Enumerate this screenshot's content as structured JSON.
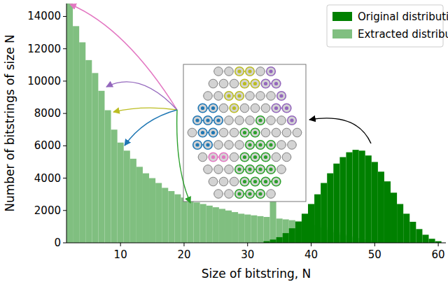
{
  "chart_data": {
    "type": "histogram",
    "x_label": "Size of bitstring, N",
    "y_label": "Number of bitstrings of size N",
    "bins": [
      1.5,
      2.5,
      3.5,
      4.5,
      5.5,
      6.5,
      7.5,
      8.5,
      9.5,
      10.5,
      11.5,
      12.5,
      13.5,
      14.5,
      15.5,
      16.5,
      17.5,
      18.5,
      19.5,
      20.5,
      21.5,
      22.5,
      23.5,
      24.5,
      25.5,
      26.5,
      27.5,
      28.5,
      29.5,
      30.5,
      31.5,
      32.5,
      33.5,
      34.5,
      35.5,
      36.5,
      37.5,
      38.5,
      39.5,
      40.5,
      41.5,
      42.5,
      43.5,
      44.5,
      45.5,
      46.5,
      47.5,
      48.5,
      49.5,
      50.5,
      51.5,
      52.5,
      53.5,
      54.5,
      55.5,
      56.5,
      57.5,
      58.5,
      59.5,
      60.5
    ],
    "series": [
      {
        "name": "Original distribution",
        "color": "#008000",
        "values": [
          0,
          0,
          0,
          0,
          0,
          0,
          0,
          0,
          0,
          0,
          0,
          0,
          0,
          0,
          0,
          0,
          0,
          0,
          0,
          0,
          0,
          0,
          0,
          0,
          0,
          0,
          0,
          0,
          0,
          0,
          0,
          100,
          200,
          350,
          600,
          900,
          1300,
          1800,
          2400,
          3000,
          3700,
          4300,
          4900,
          5300,
          5600,
          5750,
          5700,
          5400,
          5000,
          4400,
          3800,
          3100,
          2400,
          1800,
          1300,
          850,
          500,
          250,
          100
        ]
      },
      {
        "name": "Extracted distribution",
        "color": "#80bf80",
        "values": [
          14800,
          13400,
          12400,
          11300,
          10500,
          9400,
          8200,
          7000,
          6200,
          5700,
          5200,
          4700,
          4300,
          4000,
          3700,
          3400,
          3200,
          3000,
          2800,
          2600,
          2500,
          2400,
          2300,
          2200,
          2100,
          2000,
          1900,
          1800,
          1750,
          1700,
          1650,
          1600,
          3200,
          1500,
          1450,
          1400,
          1350,
          1300,
          1250,
          1100,
          950,
          800,
          650,
          500,
          400,
          300,
          200,
          150,
          100,
          60,
          30,
          0,
          0,
          0,
          0,
          0,
          0,
          0,
          0
        ]
      }
    ],
    "xlim": [
      1.5,
      61.2
    ],
    "ylim": [
      0,
      14800
    ],
    "xticks": [
      10,
      20,
      30,
      40,
      50,
      60
    ],
    "yticks": [
      0,
      2000,
      4000,
      6000,
      8000,
      10000,
      12000,
      14000
    ],
    "legend": "upper right",
    "grid": false
  }
}
